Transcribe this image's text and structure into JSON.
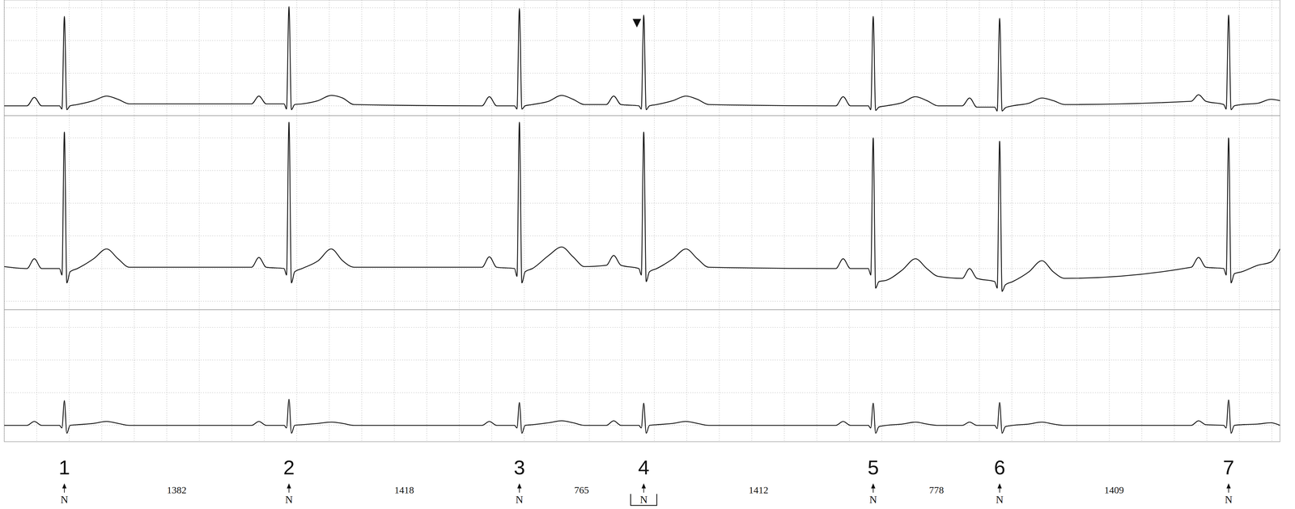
{
  "chart_data": [
    {
      "type": "line",
      "x": [
        0,
        140,
        185,
        230,
        340,
        355,
        370,
        385,
        405,
        450,
        550,
        630,
        700,
        770,
        1522,
        1567,
        1612,
        1722,
        1737,
        1752,
        1767,
        1787,
        1832,
        1932,
        2012,
        2082,
        2152,
        2940,
        2985,
        3030,
        3140,
        3155,
        3170,
        3185,
        3205,
        3250,
        3350,
        3430,
        3500,
        3570,
        3705,
        3750,
        3795,
        3905,
        3920,
        3935,
        3950,
        3970,
        4015,
        4115,
        4195,
        4265,
        4335,
        5117,
        5162,
        5207,
        5317,
        5332,
        5347,
        5362,
        5382,
        5427,
        5527,
        5607,
        5677,
        5747,
        5895,
        5940,
        5985,
        6095,
        6110,
        6125,
        6140,
        6160,
        6205,
        6305,
        6385,
        6455,
        6525,
        7304,
        7349,
        7394,
        7504,
        7519,
        7534,
        7549,
        7569,
        7614,
        7714,
        7794,
        7850
      ],
      "series": [
        {
          "color": "#111111",
          "values": [
            0,
            0,
            0.13,
            0,
            0,
            -0.05,
            1.37,
            -0.06,
            0,
            0.02,
            0.08,
            0.15,
            0.1,
            0.03,
            0.03,
            0.15,
            0.03,
            0.03,
            -0.05,
            1.52,
            -0.06,
            0.02,
            0.03,
            0.08,
            0.16,
            0.12,
            0.02,
            0,
            0.14,
            0,
            0,
            -0.05,
            1.49,
            -0.05,
            0,
            0.02,
            0.07,
            0.16,
            0.1,
            0.02,
            0.02,
            0.15,
            0.02,
            0,
            -0.05,
            1.39,
            -0.06,
            0,
            0.02,
            0.08,
            0.15,
            0.1,
            0.02,
            0,
            0.14,
            0,
            0,
            -0.06,
            1.37,
            -0.07,
            -0.02,
            0,
            0.05,
            0.14,
            0.08,
            0,
            0,
            0.12,
            -0.02,
            -0.02,
            -0.08,
            1.34,
            -0.08,
            -0.03,
            0,
            0.04,
            0.12,
            0.08,
            0.02,
            0.07,
            0.17,
            0.07,
            0.02,
            -0.05,
            1.39,
            -0.06,
            0,
            0.02,
            0.04,
            0.1,
            0.08
          ]
        }
      ],
      "xlim": [
        0,
        7850
      ],
      "ylim": [
        -0.15,
        1.62
      ],
      "xticks": [
        0,
        200,
        400,
        600,
        800,
        1000,
        1200,
        1400,
        1600,
        1800,
        2000,
        2200,
        2400,
        2600,
        2800,
        3000,
        3200,
        3400,
        3600,
        3800,
        4000,
        4200,
        4400,
        4600,
        4800,
        5000,
        5200,
        5400,
        5600,
        5800,
        6000,
        6200,
        6400,
        6600,
        6800,
        7000,
        7200,
        7400,
        7600,
        7800
      ],
      "yticks": [
        0,
        0.5,
        1,
        1.5
      ],
      "grid": true,
      "tick_labels": false
    },
    {
      "type": "line",
      "x": [
        0,
        140,
        185,
        230,
        340,
        355,
        370,
        385,
        405,
        450,
        550,
        630,
        700,
        770,
        1522,
        1567,
        1612,
        1722,
        1737,
        1752,
        1767,
        1787,
        1832,
        1932,
        2012,
        2082,
        2152,
        2940,
        2985,
        3030,
        3140,
        3155,
        3170,
        3185,
        3205,
        3250,
        3350,
        3430,
        3500,
        3570,
        3705,
        3750,
        3795,
        3905,
        3920,
        3935,
        3950,
        3970,
        4015,
        4115,
        4195,
        4265,
        4335,
        5117,
        5162,
        5207,
        5317,
        5332,
        5347,
        5362,
        5382,
        5427,
        5527,
        5607,
        5677,
        5747,
        5895,
        5940,
        5985,
        6095,
        6110,
        6125,
        6140,
        6160,
        6205,
        6305,
        6385,
        6455,
        6525,
        7304,
        7349,
        7394,
        7504,
        7519,
        7534,
        7549,
        7569,
        7614,
        7714,
        7794,
        7850
      ],
      "series": [
        {
          "color": "#111111",
          "values": [
            0.03,
            0,
            0.15,
            0,
            0,
            -0.1,
            2.09,
            -0.22,
            -0.05,
            0,
            0.15,
            0.3,
            0.15,
            0.02,
            0.02,
            0.17,
            0.02,
            0,
            -0.1,
            2.24,
            -0.22,
            -0.05,
            0,
            0.12,
            0.3,
            0.12,
            0.02,
            0.02,
            0.18,
            0.02,
            0,
            -0.12,
            2.24,
            -0.22,
            -0.05,
            0,
            0.2,
            0.33,
            0.18,
            0.03,
            0.05,
            0.2,
            0.05,
            0,
            -0.1,
            2.09,
            -0.2,
            -0.05,
            0,
            0.15,
            0.3,
            0.15,
            0.02,
            0,
            0.15,
            0,
            0,
            -0.1,
            2.0,
            -0.3,
            -0.2,
            -0.18,
            -0.02,
            0.15,
            0,
            -0.12,
            -0.15,
            0,
            -0.15,
            -0.2,
            -0.3,
            1.95,
            -0.35,
            -0.25,
            -0.2,
            -0.05,
            0.12,
            -0.05,
            -0.15,
            0.02,
            0.17,
            0.02,
            0,
            -0.1,
            2.0,
            -0.22,
            -0.08,
            -0.05,
            0.05,
            0.1,
            0.3
          ]
        }
      ],
      "xlim": [
        0,
        7850
      ],
      "ylim": [
        -0.63,
        2.34
      ],
      "xticks": [
        0,
        200,
        400,
        600,
        800,
        1000,
        1200,
        1400,
        1600,
        1800,
        2000,
        2200,
        2400,
        2600,
        2800,
        3000,
        3200,
        3400,
        3600,
        3800,
        4000,
        4200,
        4400,
        4600,
        4800,
        5000,
        5200,
        5400,
        5600,
        5800,
        6000,
        6200,
        6400,
        6600,
        6800,
        7000,
        7200,
        7400,
        7600,
        7800
      ],
      "yticks": [
        -0.5,
        0,
        0.5,
        1,
        1.5,
        2
      ],
      "grid": true,
      "tick_labels": false
    },
    {
      "type": "line",
      "x": [
        0,
        140,
        185,
        230,
        340,
        355,
        370,
        385,
        405,
        450,
        550,
        630,
        700,
        770,
        1522,
        1567,
        1612,
        1722,
        1737,
        1752,
        1767,
        1787,
        1832,
        1932,
        2012,
        2082,
        2152,
        2940,
        2985,
        3030,
        3140,
        3155,
        3170,
        3185,
        3205,
        3250,
        3350,
        3430,
        3500,
        3570,
        3705,
        3750,
        3795,
        3905,
        3920,
        3935,
        3950,
        3970,
        4015,
        4115,
        4195,
        4265,
        4335,
        5117,
        5162,
        5207,
        5317,
        5332,
        5347,
        5362,
        5382,
        5427,
        5527,
        5607,
        5677,
        5747,
        5895,
        5940,
        5985,
        6095,
        6110,
        6125,
        6140,
        6160,
        6205,
        6305,
        6385,
        6455,
        6525,
        7304,
        7349,
        7394,
        7504,
        7519,
        7534,
        7549,
        7569,
        7614,
        7714,
        7794,
        7850
      ],
      "series": [
        {
          "color": "#111111",
          "values": [
            0,
            0,
            0.06,
            0,
            0,
            -0.04,
            0.38,
            -0.12,
            0,
            0.01,
            0.03,
            0.06,
            0.03,
            0,
            0,
            0.06,
            0,
            0,
            -0.04,
            0.4,
            -0.12,
            0,
            0.01,
            0.03,
            0.05,
            0.03,
            0,
            0,
            0.06,
            0,
            0,
            -0.04,
            0.35,
            -0.12,
            0,
            0.01,
            0.04,
            0.07,
            0.04,
            0,
            0,
            0.07,
            0,
            0,
            -0.04,
            0.34,
            -0.12,
            0,
            0.01,
            0.03,
            0.06,
            0.03,
            0,
            0,
            0.06,
            0,
            0,
            -0.04,
            0.34,
            -0.12,
            -0.02,
            0,
            0.02,
            0.05,
            0.02,
            0,
            0,
            0.05,
            0,
            0,
            -0.05,
            0.35,
            -0.12,
            -0.02,
            0,
            0.02,
            0.05,
            0.02,
            0,
            0,
            0.07,
            0.01,
            0,
            -0.04,
            0.39,
            -0.12,
            0,
            0.01,
            0.02,
            0.04,
            0
          ]
        }
      ],
      "xlim": [
        0,
        7850
      ],
      "ylim": [
        -0.25,
        1.77
      ],
      "xticks": [
        0,
        200,
        400,
        600,
        800,
        1000,
        1200,
        1400,
        1600,
        1800,
        2000,
        2200,
        2400,
        2600,
        2800,
        3000,
        3200,
        3400,
        3600,
        3800,
        4000,
        4200,
        4400,
        4600,
        4800,
        5000,
        5200,
        5400,
        5600,
        5800,
        6000,
        6200,
        6400,
        6600,
        6800,
        7000,
        7200,
        7400,
        7600,
        7800
      ],
      "yticks": [
        0,
        0.5,
        1,
        1.5
      ],
      "grid": true,
      "tick_labels": false,
      "annotations": {
        "beat_numbers": [
          1,
          2,
          3,
          4,
          5,
          6,
          7
        ],
        "beat_x": [
          370,
          1752,
          3170,
          3935,
          5347,
          6125,
          7534
        ],
        "beat_labels": [
          "N",
          "N",
          "N",
          "N",
          "N",
          "N",
          "N"
        ],
        "rr_intervals": [
          1382,
          1418,
          765,
          1412,
          778,
          1409
        ],
        "selected_beat": 4
      }
    }
  ]
}
